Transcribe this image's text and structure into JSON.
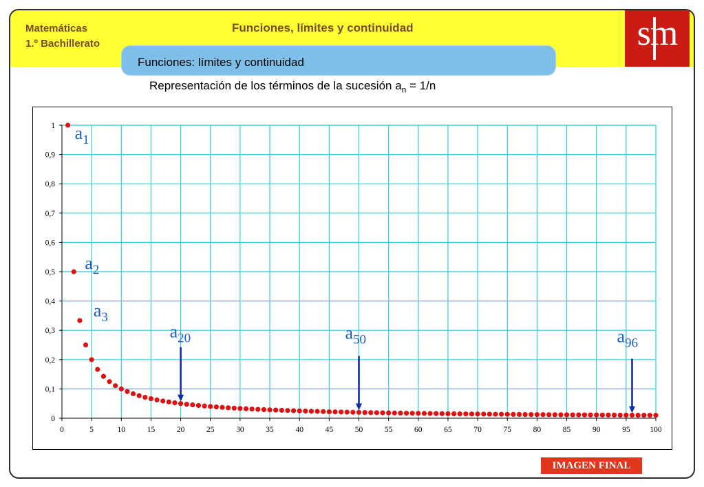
{
  "header": {
    "subject_line1": "Matemáticas",
    "subject_line2": "1.º Bachillerato",
    "title": "Funciones, límites y continuidad",
    "logo_text": "sm"
  },
  "tab": {
    "label": "Funciones: límites y continuidad"
  },
  "caption": {
    "text_before": "Representación de los términos de la sucesión a",
    "subscript": "n",
    "text_after": " = 1/n"
  },
  "badge": {
    "label": "IMAGEN FINAL"
  },
  "colors": {
    "header_band": "#ffff33",
    "header_text": "#7a4a2a",
    "logo": "#cc1b14",
    "tab": "#7dbfe8",
    "grid": "#33ccdd",
    "points": "#e01010",
    "annotation": "#1a5fc8",
    "arrow": "#0a2fa8",
    "badge": "#e0361c"
  },
  "chart_data": {
    "type": "scatter",
    "formula": "a_n = 1/n",
    "x": [
      1,
      2,
      3,
      4,
      5,
      6,
      7,
      8,
      9,
      10,
      11,
      12,
      13,
      14,
      15,
      16,
      17,
      18,
      19,
      20,
      21,
      22,
      23,
      24,
      25,
      26,
      27,
      28,
      29,
      30,
      31,
      32,
      33,
      34,
      35,
      36,
      37,
      38,
      39,
      40,
      41,
      42,
      43,
      44,
      45,
      46,
      47,
      48,
      49,
      50,
      51,
      52,
      53,
      54,
      55,
      56,
      57,
      58,
      59,
      60,
      61,
      62,
      63,
      64,
      65,
      66,
      67,
      68,
      69,
      70,
      71,
      72,
      73,
      74,
      75,
      76,
      77,
      78,
      79,
      80,
      81,
      82,
      83,
      84,
      85,
      86,
      87,
      88,
      89,
      90,
      91,
      92,
      93,
      94,
      95,
      96,
      97,
      98,
      99,
      100
    ],
    "y": [
      1,
      0.5,
      0.3333,
      0.25,
      0.2,
      0.1667,
      0.1429,
      0.125,
      0.1111,
      0.1,
      0.0909,
      0.0833,
      0.0769,
      0.0714,
      0.0667,
      0.0625,
      0.0588,
      0.0556,
      0.0526,
      0.05,
      0.0476,
      0.0455,
      0.0435,
      0.0417,
      0.04,
      0.0385,
      0.037,
      0.0357,
      0.0345,
      0.0333,
      0.0323,
      0.0313,
      0.0303,
      0.0294,
      0.0286,
      0.0278,
      0.027,
      0.0263,
      0.0256,
      0.025,
      0.0244,
      0.0238,
      0.0233,
      0.0227,
      0.0222,
      0.0217,
      0.0213,
      0.0208,
      0.0204,
      0.02,
      0.0196,
      0.0192,
      0.0189,
      0.0185,
      0.0182,
      0.0179,
      0.0175,
      0.0172,
      0.0169,
      0.0167,
      0.0164,
      0.0161,
      0.0159,
      0.0156,
      0.0154,
      0.0152,
      0.0149,
      0.0147,
      0.0145,
      0.0143,
      0.0141,
      0.0139,
      0.0137,
      0.0135,
      0.0133,
      0.0132,
      0.013,
      0.0128,
      0.0127,
      0.0125,
      0.0123,
      0.0122,
      0.012,
      0.0119,
      0.0118,
      0.0116,
      0.0115,
      0.0114,
      0.0112,
      0.0111,
      0.011,
      0.0109,
      0.0108,
      0.0106,
      0.0105,
      0.0104,
      0.0103,
      0.0102,
      0.0101,
      0.01
    ],
    "xlim": [
      0,
      100
    ],
    "ylim": [
      0,
      1
    ],
    "x_ticks": [
      0,
      5,
      10,
      15,
      20,
      25,
      30,
      35,
      40,
      45,
      50,
      55,
      60,
      65,
      70,
      75,
      80,
      85,
      90,
      95,
      100
    ],
    "x_tick_labels": [
      "0",
      "5",
      "10",
      "15",
      "20",
      "25",
      "30",
      "35",
      "40",
      "45",
      "50",
      "55",
      "60",
      "65",
      "70",
      "75",
      "80",
      "85",
      "90",
      "95",
      "100"
    ],
    "y_ticks": [
      0,
      0.1,
      0.2,
      0.3,
      0.4,
      0.5,
      0.6,
      0.7,
      0.8,
      0.9,
      1
    ],
    "y_tick_labels": [
      "0",
      "0,1",
      "0,2",
      "0,3",
      "0,4",
      "0,5",
      "0,6",
      "0,7",
      "0,8",
      "0,9",
      "1"
    ],
    "grid": true,
    "title": "",
    "xlabel": "",
    "ylabel": "",
    "annotations": [
      {
        "base": "a",
        "sub": "1",
        "n": 1,
        "arrow": false
      },
      {
        "base": "a",
        "sub": "2",
        "n": 2,
        "arrow": false
      },
      {
        "base": "a",
        "sub": "3",
        "n": 3,
        "arrow": false
      },
      {
        "base": "a",
        "sub": "20",
        "n": 20,
        "arrow": true
      },
      {
        "base": "a",
        "sub": "50",
        "n": 50,
        "arrow": true
      },
      {
        "base": "a",
        "sub": "96",
        "n": 96,
        "arrow": true
      }
    ]
  }
}
